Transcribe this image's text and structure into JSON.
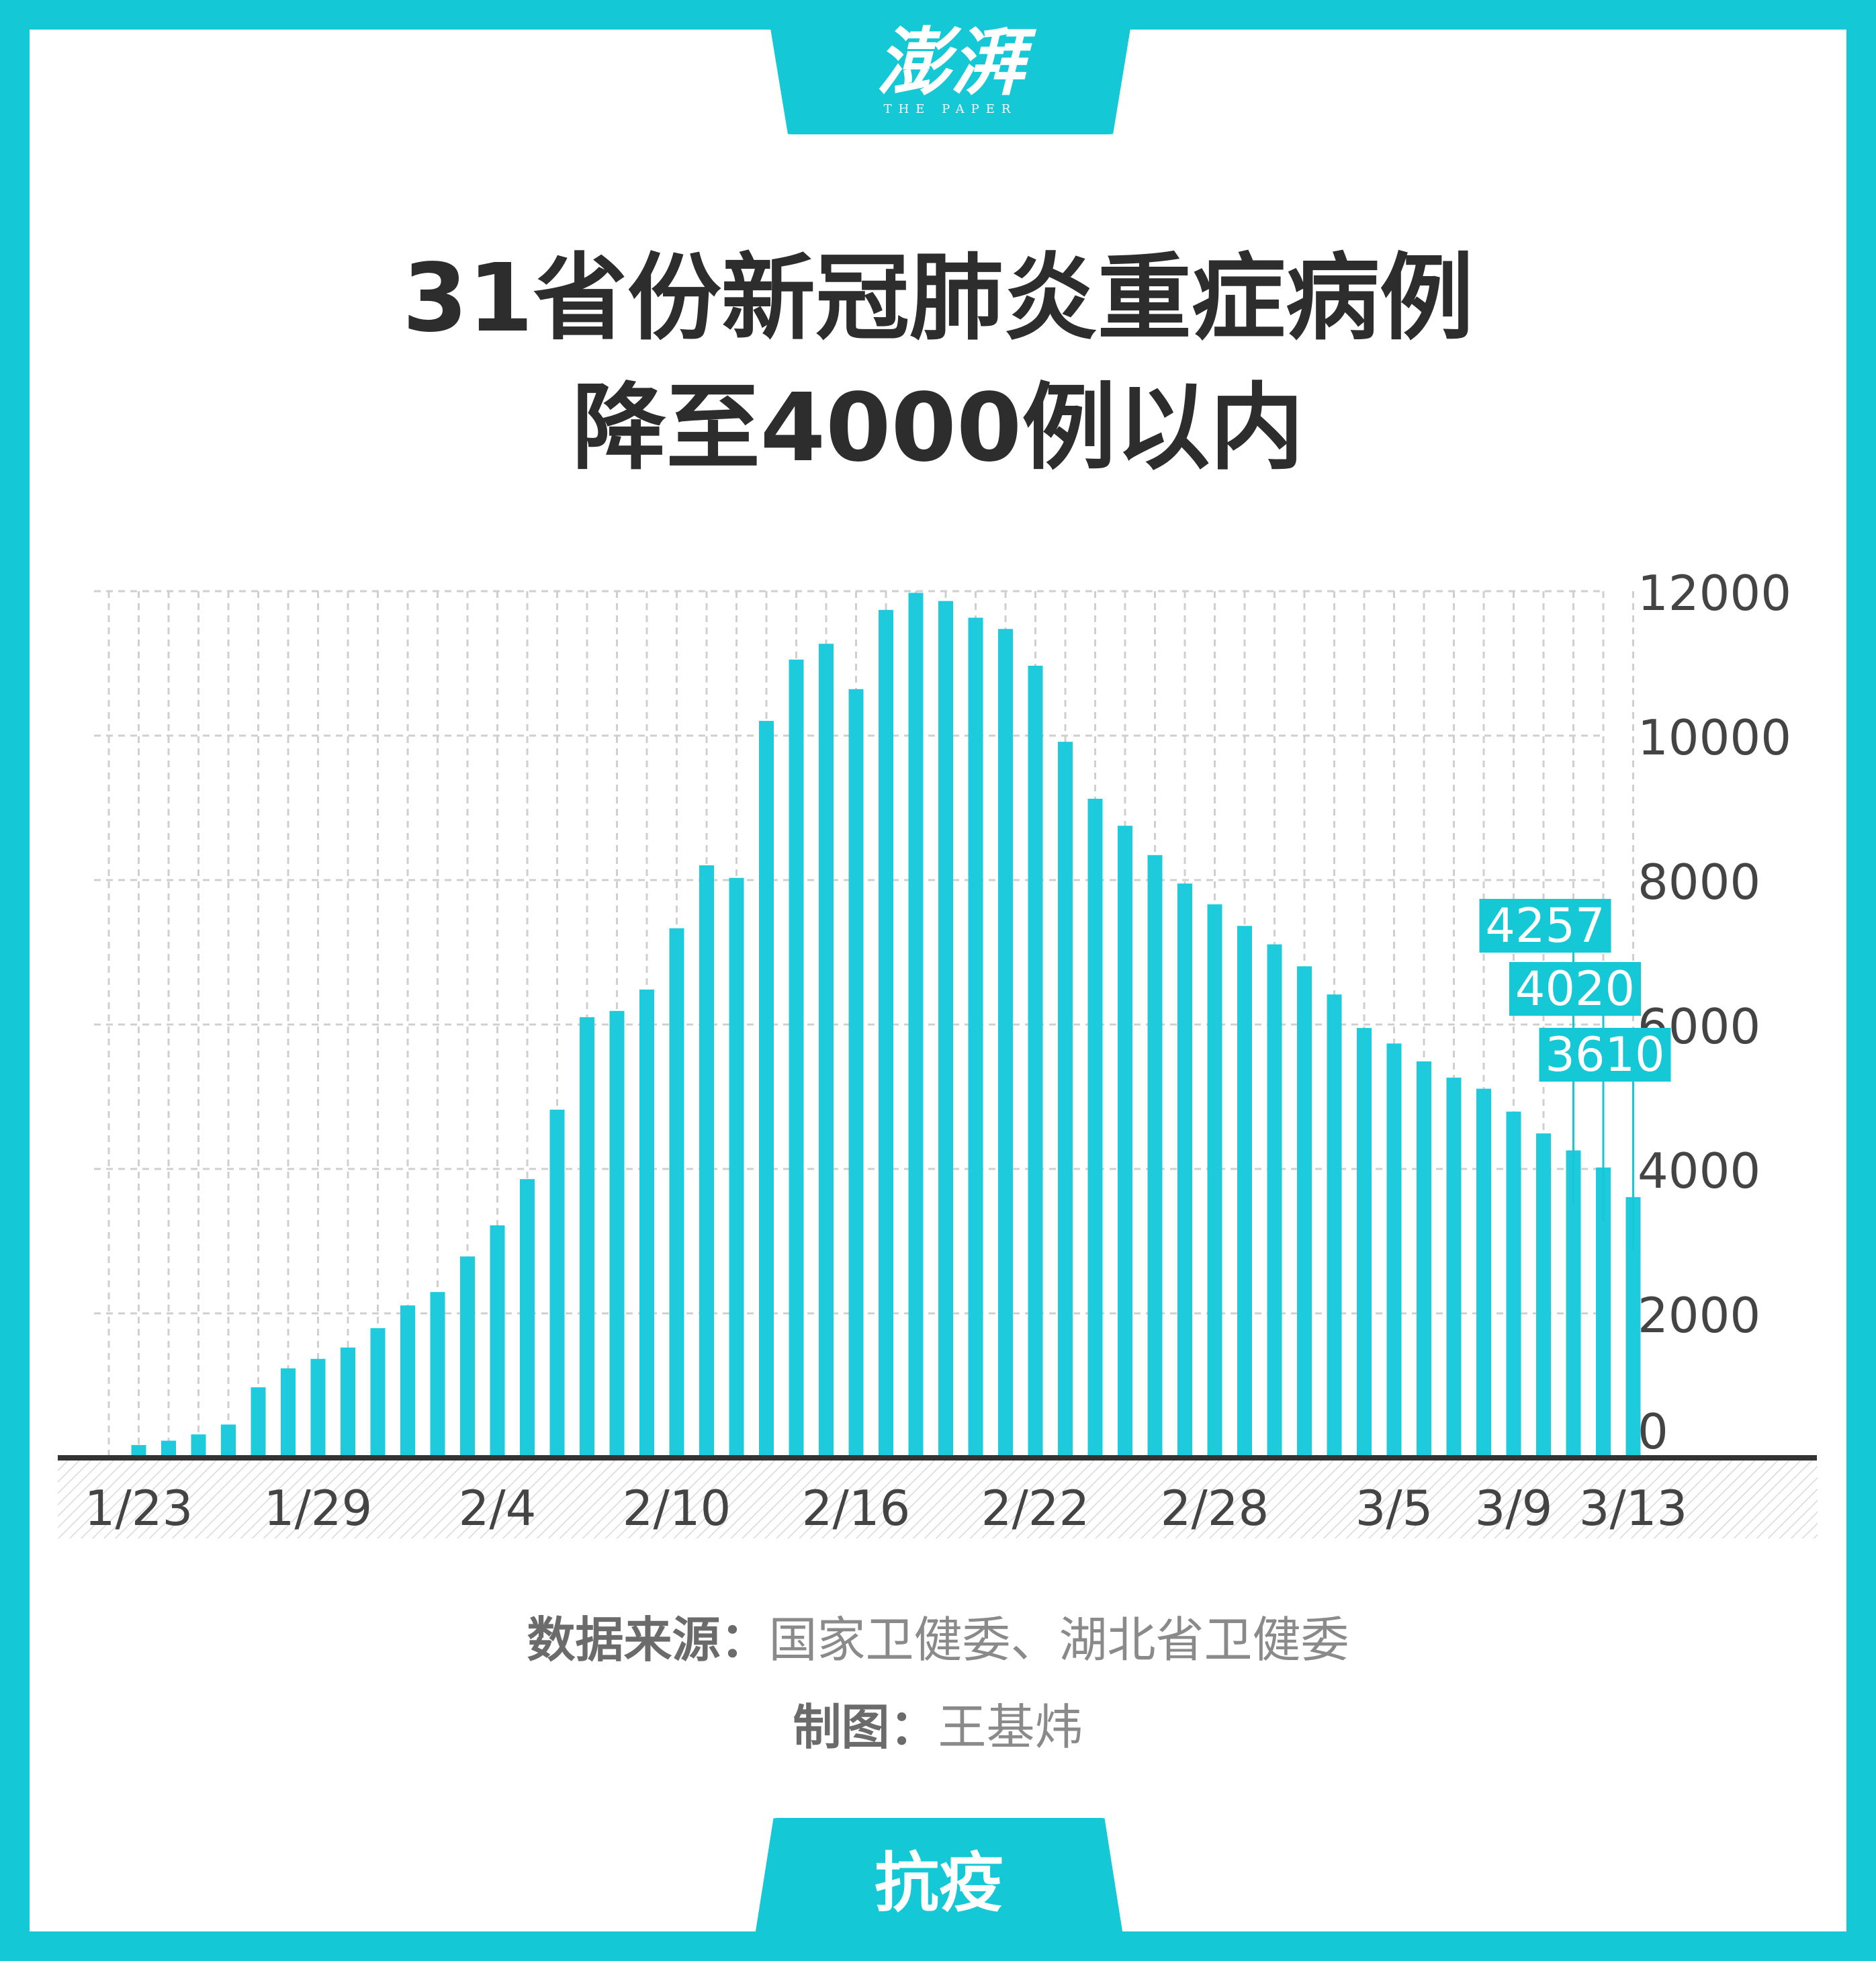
{
  "brand": {
    "logo_text": "澎湃",
    "logo_sub": "THE PAPER",
    "bottom_tab": "抗疫"
  },
  "title": {
    "line1": "31省份新冠肺炎重症病例",
    "line2": "降至4000例以内"
  },
  "footer": {
    "source_label": "数据来源：",
    "source_value": "国家卫健委、湖北省卫健委",
    "maker_label": "制图：",
    "maker_value": "王基炜"
  },
  "colors": {
    "accent": "#14c8d6",
    "bar": "#1dcbdc",
    "text_dark": "#2d2d2d",
    "grid": "#c8c8c8"
  },
  "chart_data": {
    "type": "bar",
    "title": "",
    "xlabel": "",
    "ylabel": "",
    "ylim": [
      0,
      12000
    ],
    "y_ticks": [
      "0",
      "2000",
      "4000",
      "6000",
      "8000",
      "10000",
      "12000"
    ],
    "grid": true,
    "categories": [
      "1/22",
      "1/23",
      "1/24",
      "1/25",
      "1/26",
      "1/27",
      "1/28",
      "1/29",
      "1/30",
      "1/31",
      "2/1",
      "2/2",
      "2/3",
      "2/4",
      "2/5",
      "2/6",
      "2/7",
      "2/8",
      "2/9",
      "2/10",
      "2/11",
      "2/12",
      "2/13",
      "2/14",
      "2/15",
      "2/16",
      "2/17",
      "2/18",
      "2/19",
      "2/20",
      "2/21",
      "2/22",
      "2/23",
      "2/24",
      "2/25",
      "2/26",
      "2/27",
      "2/28",
      "2/29",
      "3/1",
      "3/2",
      "3/3",
      "3/4",
      "3/5",
      "3/6",
      "3/7",
      "3/8",
      "3/9",
      "3/10",
      "3/11",
      "3/12",
      "3/13"
    ],
    "x_tick_labels": [
      {
        "category": "1/23",
        "text": "1/23"
      },
      {
        "category": "1/29",
        "text": "1/29"
      },
      {
        "category": "2/4",
        "text": "2/4"
      },
      {
        "category": "2/10",
        "text": "2/10"
      },
      {
        "category": "2/16",
        "text": "2/16"
      },
      {
        "category": "2/22",
        "text": "2/22"
      },
      {
        "category": "2/28",
        "text": "2/28"
      },
      {
        "category": "3/5",
        "text": "3/5"
      },
      {
        "category": "3/9",
        "text": "3/9"
      },
      {
        "category": "3/13",
        "text": "3/13"
      }
    ],
    "values": [
      0,
      177,
      237,
      324,
      461,
      976,
      1239,
      1370,
      1527,
      1795,
      2110,
      2296,
      2788,
      3219,
      3859,
      4821,
      6101,
      6188,
      6484,
      7333,
      8204,
      8030,
      10204,
      11053,
      11272,
      10644,
      11741,
      11977,
      11864,
      11633,
      11477,
      10968,
      9915,
      9126,
      8752,
      8346,
      7952,
      7664,
      7365,
      7110,
      6806,
      6416,
      5952,
      5737,
      5489,
      5264,
      5111,
      4794,
      4492,
      4257,
      4020,
      3610
    ],
    "annotations": [
      {
        "category": "3/11",
        "value": 4257,
        "text": "4257"
      },
      {
        "category": "3/12",
        "value": 4020,
        "text": "4020"
      },
      {
        "category": "3/13",
        "value": 3610,
        "text": "3610"
      }
    ]
  }
}
